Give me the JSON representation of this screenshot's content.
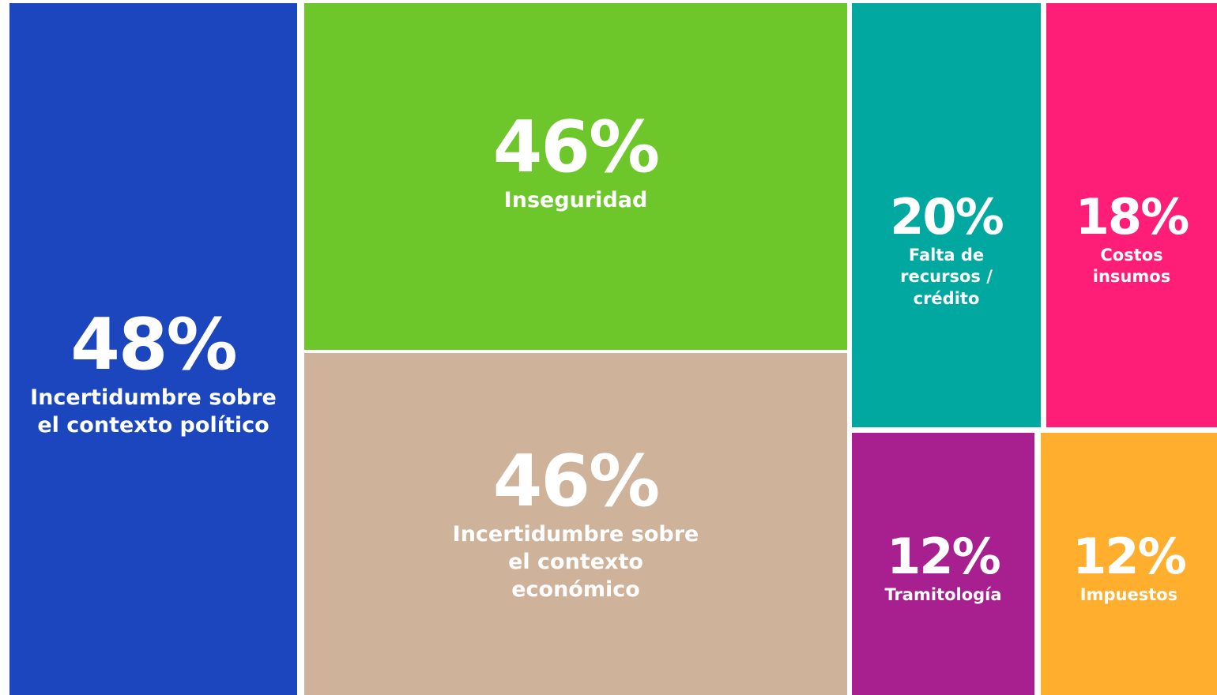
{
  "chart_data": {
    "type": "treemap",
    "categories": [
      "Incertidumbre sobre el contexto político",
      "Inseguridad",
      "Incertidumbre sobre el contexto económico",
      "Falta de recursos / crédito",
      "Costos insumos",
      "Tramitología",
      "Impuestos"
    ],
    "values": [
      48,
      46,
      46,
      20,
      18,
      12,
      12
    ],
    "value_labels": [
      "48%",
      "46%",
      "46%",
      "20%",
      "18%",
      "12%",
      "12%"
    ],
    "colors": [
      "#1b46bd",
      "#6dc72a",
      "#cfb29a",
      "#01a8a0",
      "#fe1e77",
      "#a8208f",
      "#ffae2d"
    ]
  }
}
